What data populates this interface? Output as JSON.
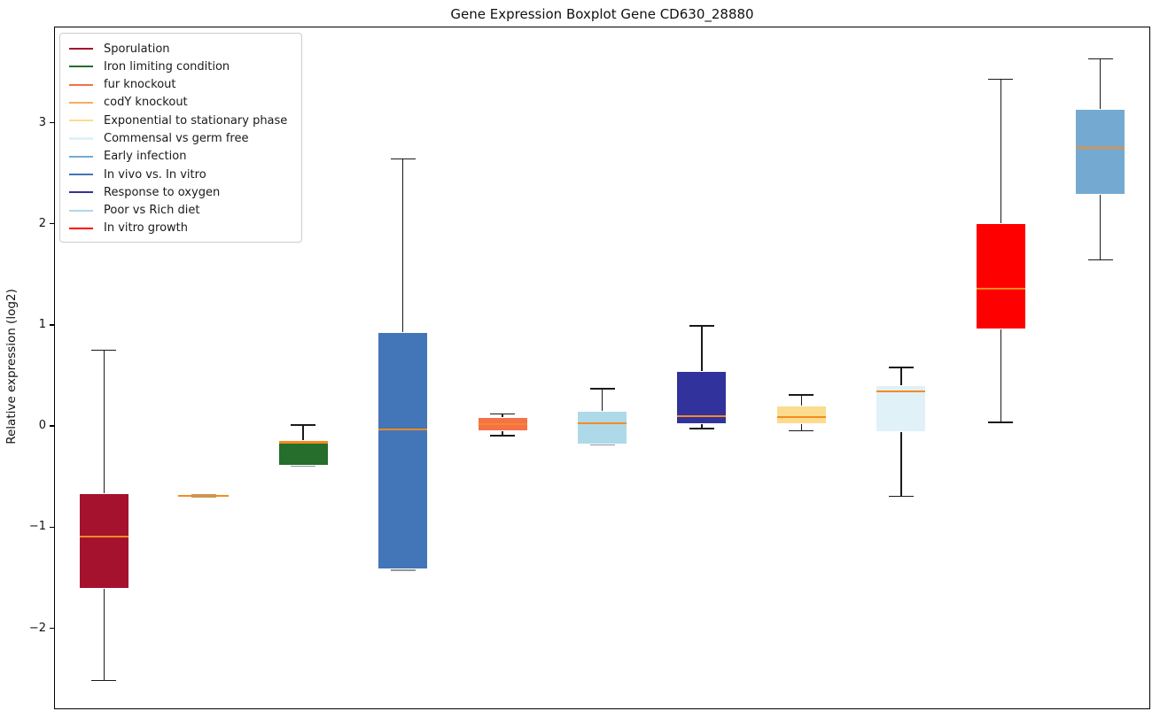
{
  "chart_data": {
    "type": "boxplot",
    "title": "Gene Expression Boxplot Gene CD630_28880",
    "ylabel": "Relative expression (log2)",
    "xlabel": "",
    "grid": false,
    "ylim": [
      -2.8,
      3.95
    ],
    "yticks": [
      3,
      2,
      1,
      0,
      -1,
      -2
    ],
    "ytick_labels": [
      "3",
      "2",
      "1",
      "0",
      "−1",
      "−2"
    ],
    "legend_position": "upper-left",
    "style": {
      "median_color": "#f68b22",
      "degenerate_center_color": "#cd9550",
      "whisker_color": "#1a1a1a",
      "box_edge_color": "#ffffff",
      "frame_color": "#000000"
    },
    "legend": [
      {
        "label": "Sporulation",
        "color": "#a5122d"
      },
      {
        "label": "Iron limiting condition",
        "color": "#256e2b"
      },
      {
        "label": "fur knockout",
        "color": "#f4714a"
      },
      {
        "label": "codY knockout",
        "color": "#fba95e"
      },
      {
        "label": "Exponential to stationary phase",
        "color": "#fbdc8f"
      },
      {
        "label": "Commensal vs germ free",
        "color": "#e0f1f8"
      },
      {
        "label": "Early infection",
        "color": "#74aad2"
      },
      {
        "label": "In vivo vs. In vitro",
        "color": "#4375b9"
      },
      {
        "label": "Response to oxygen",
        "color": "#32329c"
      },
      {
        "label": "Poor vs Rich diet",
        "color": "#aed9e9"
      },
      {
        "label": "In vitro growth",
        "color": "#ff0000"
      }
    ],
    "boxes": [
      {
        "label": "Sporulation",
        "color": "#a5122d",
        "whislo": -2.51,
        "q1": -1.61,
        "med": -1.09,
        "q3": -0.66,
        "whishi": 0.75
      },
      {
        "label": "codY knockout",
        "color": "#fba95e",
        "whislo": -0.69,
        "q1": -0.69,
        "med": -0.69,
        "q3": -0.69,
        "whishi": -0.69
      },
      {
        "label": "Iron limiting condition",
        "color": "#256e2b",
        "whislo": -0.39,
        "q1": -0.39,
        "med": -0.16,
        "q3": -0.14,
        "whishi": 0.01
      },
      {
        "label": "In vivo vs. In vitro",
        "color": "#4375b9",
        "whislo": -1.42,
        "q1": -1.42,
        "med": -0.03,
        "q3": 0.93,
        "whishi": 2.64
      },
      {
        "label": "fur knockout",
        "color": "#f4714a",
        "whislo": -0.09,
        "q1": -0.05,
        "med": 0.02,
        "q3": 0.09,
        "whishi": 0.12
      },
      {
        "label": "Poor vs Rich diet",
        "color": "#aed9e9",
        "whislo": -0.18,
        "q1": -0.18,
        "med": 0.03,
        "q3": 0.15,
        "whishi": 0.37
      },
      {
        "label": "Response to oxygen",
        "color": "#32329c",
        "whislo": -0.02,
        "q1": 0.02,
        "med": 0.1,
        "q3": 0.54,
        "whishi": 0.99
      },
      {
        "label": "Exponential to stationary phase",
        "color": "#fbdc8f",
        "whislo": -0.04,
        "q1": 0.02,
        "med": 0.09,
        "q3": 0.2,
        "whishi": 0.31
      },
      {
        "label": "Commensal vs germ free",
        "color": "#e0f1f8",
        "whislo": -0.69,
        "q1": -0.06,
        "med": 0.34,
        "q3": 0.4,
        "whishi": 0.58
      },
      {
        "label": "In vitro growth",
        "color": "#ff0000",
        "whislo": 0.04,
        "q1": 0.96,
        "med": 1.36,
        "q3": 2.01,
        "whishi": 3.43
      },
      {
        "label": "Early infection",
        "color": "#74aad2",
        "whislo": 1.65,
        "q1": 2.29,
        "med": 2.75,
        "q3": 3.14,
        "whishi": 3.63
      }
    ]
  }
}
